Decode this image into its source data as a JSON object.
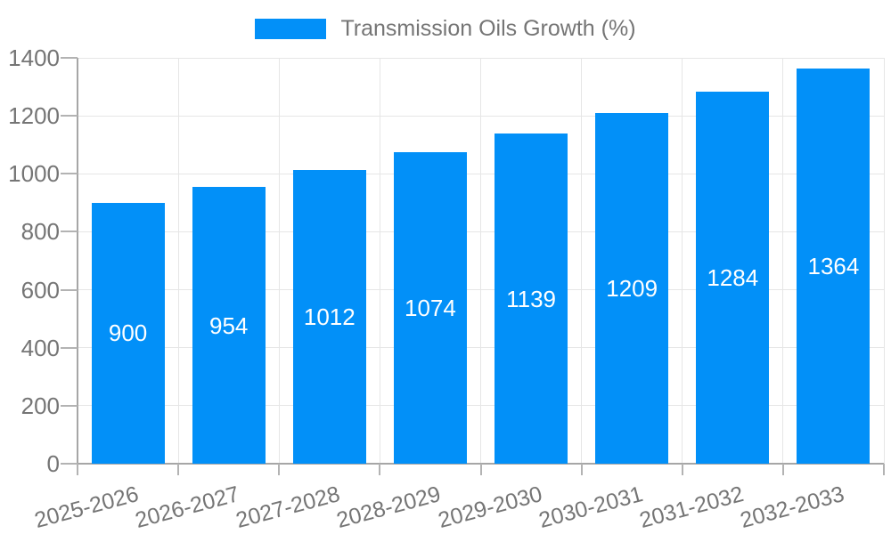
{
  "legend": {
    "label": "Transmission Oils Growth (%)"
  },
  "colors": {
    "bar": "#0290f8",
    "axis_text": "#757575",
    "bar_label_text": "#ffffff",
    "gridline": "#e6e6e6",
    "axis_line": "#a6a6a6",
    "tick": "#b3b3b3",
    "background": "#ffffff"
  },
  "chart_data": {
    "type": "bar",
    "title": "Transmission Oils Growth (%)",
    "categories": [
      "2025-2026",
      "2026-2027",
      "2027-2028",
      "2028-2029",
      "2029-2030",
      "2030-2031",
      "2031-2032",
      "2032-2033"
    ],
    "series": [
      {
        "name": "Transmission Oils Growth (%)",
        "values": [
          900,
          954,
          1012,
          1074,
          1139,
          1209,
          1284,
          1364
        ]
      }
    ],
    "values": [
      900,
      954,
      1012,
      1074,
      1139,
      1209,
      1284,
      1364
    ],
    "value_labels_inside_bars": true,
    "xlabel": "",
    "ylabel": "",
    "ylim": [
      0,
      1400
    ],
    "ytick_step": 200,
    "yticks": [
      0,
      200,
      400,
      600,
      800,
      1000,
      1200,
      1400
    ],
    "grid": true,
    "legend_position": "top-center",
    "x_label_rotation_deg": -15
  }
}
